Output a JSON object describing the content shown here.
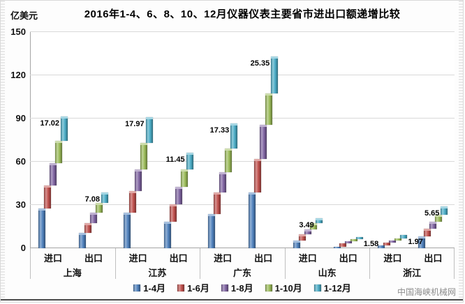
{
  "title": "2016年1-4、6、8、10、12月仪器仪表主要省市进出口额递增比较",
  "unit_label": "亿美元",
  "watermark": "中国海峡机械网",
  "chart_data": {
    "type": "bar",
    "subtype": "cascading-increment-columns",
    "title": "2016年1-4、6、8、10、12月仪器仪表主要省市进出口额递增比较",
    "ylabel": "亿美元",
    "ylim": [
      0,
      150
    ],
    "yticks": [
      0,
      30,
      60,
      90,
      120,
      150
    ],
    "grid": true,
    "legend_position": "bottom",
    "periods": [
      {
        "label": "1-4月",
        "color": "#4F81BD"
      },
      {
        "label": "1-6月",
        "color": "#C0504D"
      },
      {
        "label": "1-8月",
        "color": "#8064A2"
      },
      {
        "label": "1-10月",
        "color": "#9BBB59"
      },
      {
        "label": "1-12月",
        "color": "#4BACC6"
      }
    ],
    "note": "Each column group is a diagonal cascade: segment i spans from previous cumulative value to cumulative[i]. The printed data label is the final Nov-Dec increment (1-12月 bar height).",
    "groups": [
      {
        "province": "上海",
        "columns": [
          {
            "label": "进口",
            "cumulative": [
              27.4,
              43.5,
              59.0,
              74.4,
              91.42
            ],
            "annotation": "17.02",
            "annotation_side": "left"
          },
          {
            "label": "出口",
            "cumulative": [
              10.8,
              17.3,
              24.5,
              31.6,
              38.68
            ],
            "annotation": "7.08",
            "annotation_side": "left"
          }
        ]
      },
      {
        "province": "江苏",
        "columns": [
          {
            "label": "进口",
            "cumulative": [
              24.5,
              39.5,
              54.5,
              73.1,
              91.07
            ],
            "annotation": "17.97",
            "annotation_side": "left"
          },
          {
            "label": "出口",
            "cumulative": [
              18.5,
              30.5,
              42.4,
              54.7,
              66.15
            ],
            "annotation": "11.45",
            "annotation_side": "left"
          }
        ]
      },
      {
        "province": "广东",
        "columns": [
          {
            "label": "进口",
            "cumulative": [
              23.7,
              38.7,
              52.7,
              69.3,
              86.63
            ],
            "annotation": "17.33",
            "annotation_side": "left"
          },
          {
            "label": "出口",
            "cumulative": [
              38.7,
              62.1,
              85.5,
              107.6,
              132.95
            ],
            "annotation": "25.35",
            "annotation_side": "left"
          }
        ]
      },
      {
        "province": "山东",
        "columns": [
          {
            "label": "进口",
            "cumulative": [
              5.5,
              9.5,
              13.2,
              17.4,
              20.89
            ],
            "annotation": "3.49",
            "annotation_side": "left"
          },
          {
            "label": "出口",
            "cumulative": [
              1.2,
              3.2,
              4.8,
              6.3,
              7.88
            ],
            "annotation": "1.58",
            "annotation_side": "right"
          }
        ]
      },
      {
        "province": "浙江",
        "columns": [
          {
            "label": "进口",
            "cumulative": [
              2.0,
              3.8,
              5.5,
              7.0,
              8.97
            ],
            "annotation": "1.97",
            "annotation_side": "right"
          },
          {
            "label": "出口",
            "cumulative": [
              8.1,
              13.7,
              18.5,
              23.4,
              29.05
            ],
            "annotation": "5.65",
            "annotation_side": "left"
          }
        ]
      }
    ]
  }
}
